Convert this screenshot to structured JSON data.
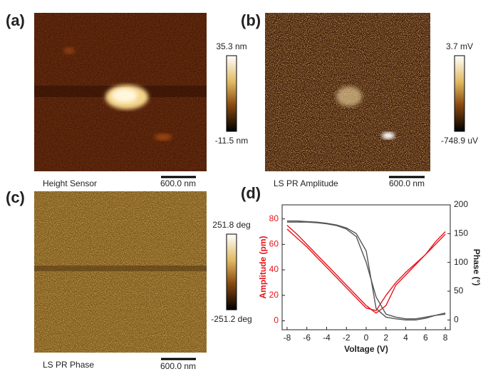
{
  "panels": [
    {
      "label": "(a)",
      "caption": "Height Sensor",
      "scale_bar": "600.0 nm",
      "colorbar_max": "35.3 nm",
      "colorbar_min": "-11.5 nm"
    },
    {
      "label": "(b)",
      "caption": "LS PR Amplitude",
      "scale_bar": "600.0 nm",
      "colorbar_max": "3.7 mV",
      "colorbar_min": "-748.9 uV"
    },
    {
      "label": "(c)",
      "caption": "LS PR Phase",
      "scale_bar": "600.0 nm",
      "colorbar_max": "251.8 deg",
      "colorbar_min": "-251.2 deg"
    }
  ],
  "chart_data": {
    "type": "line",
    "label": "(d)",
    "xlabel": "Voltage (V)",
    "ylabel": "Amplitude (pm)",
    "y2label": "Phase (°)",
    "x": [
      -8,
      -7,
      -6,
      -5,
      -4,
      -3,
      -2,
      -1,
      0,
      1,
      2,
      3,
      4,
      5,
      6,
      7,
      8
    ],
    "xlim": [
      -8.5,
      8.5
    ],
    "xticks": [
      -8,
      -6,
      -4,
      -2,
      0,
      2,
      4,
      6,
      8
    ],
    "ylim": [
      -7,
      91
    ],
    "yticks": [
      0,
      20,
      40,
      60,
      80
    ],
    "y2lim": [
      -17,
      200
    ],
    "y2ticks": [
      0,
      50,
      100,
      150,
      200
    ],
    "ylabel_color": "#e8141c",
    "series": [
      {
        "color": "#e8141c",
        "values": [
          72,
          65,
          58,
          50,
          42,
          34,
          26,
          18,
          10,
          8,
          20,
          30,
          38,
          45,
          52,
          60,
          68
        ]
      },
      {
        "color": "#e8141c",
        "values": [
          75,
          68,
          60,
          52,
          44,
          36,
          28,
          20,
          12,
          6,
          12,
          28,
          36,
          44,
          52,
          62,
          70
        ]
      },
      {
        "color": "#555555",
        "axis": "y2",
        "values": [
          172,
          172,
          171,
          170,
          168,
          165,
          160,
          150,
          120,
          20,
          5,
          2,
          0,
          0,
          3,
          8,
          10
        ]
      },
      {
        "color": "#555555",
        "axis": "y2",
        "values": [
          170,
          170,
          170,
          169,
          167,
          164,
          158,
          145,
          100,
          40,
          10,
          5,
          2,
          2,
          5,
          8,
          12
        ]
      }
    ]
  }
}
